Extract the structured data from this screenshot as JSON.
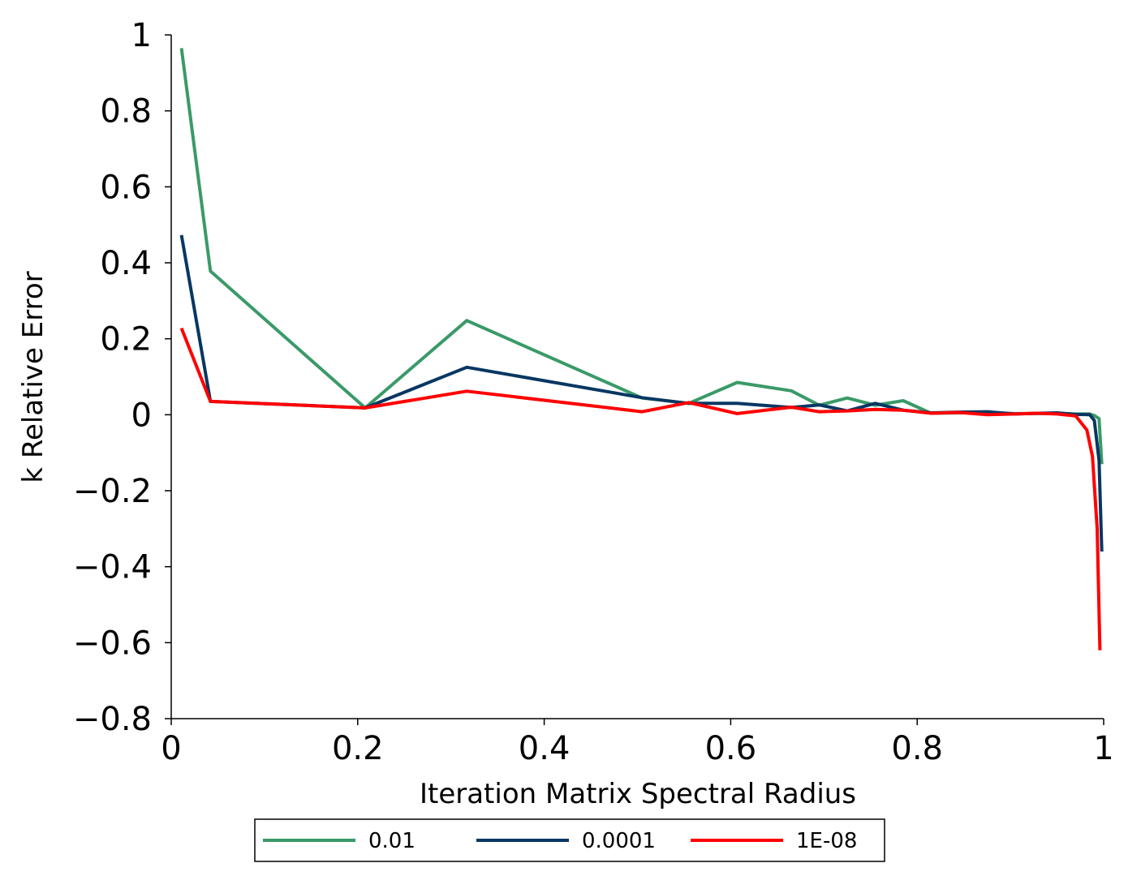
{
  "chart_data": {
    "type": "line",
    "xlabel": "Iteration Matrix Spectral Radius",
    "ylabel": "k Relative Error",
    "xlim": [
      0,
      1
    ],
    "ylim": [
      -0.8,
      1
    ],
    "xticks": [
      0,
      0.2,
      0.4,
      0.6,
      0.8,
      1
    ],
    "xtick_labels": [
      "0",
      "0.2",
      "0.4",
      "0.6",
      "0.8",
      "1"
    ],
    "yticks": [
      1,
      0.8,
      0.6,
      0.4,
      0.2,
      0,
      -0.2,
      -0.4,
      -0.6,
      -0.8
    ],
    "ytick_labels": [
      "1",
      "0.8",
      "0.6",
      "0.4",
      "0.2",
      "0",
      "−0.2",
      "−0.4",
      "−0.6",
      "−0.8"
    ],
    "grid": false,
    "legend_position": "bottom",
    "series": [
      {
        "name": "0.01",
        "color": "#3a9a68",
        "x": [
          0.011,
          0.042,
          0.208,
          0.317,
          0.505,
          0.555,
          0.607,
          0.665,
          0.695,
          0.725,
          0.755,
          0.785,
          0.815,
          0.845,
          0.875,
          0.905,
          0.93,
          0.95,
          0.97,
          0.985,
          0.99,
          0.995,
          0.998
        ],
        "y": [
          0.965,
          0.378,
          0.018,
          0.248,
          0.044,
          0.03,
          0.085,
          0.063,
          0.025,
          0.044,
          0.025,
          0.037,
          0.004,
          0.005,
          0.005,
          0.003,
          0.003,
          0.003,
          0.002,
          0.002,
          -0.002,
          -0.01,
          -0.13
        ]
      },
      {
        "name": "0.0001",
        "color": "#073763",
        "x": [
          0.011,
          0.042,
          0.208,
          0.317,
          0.505,
          0.555,
          0.607,
          0.665,
          0.695,
          0.725,
          0.755,
          0.785,
          0.815,
          0.845,
          0.875,
          0.905,
          0.93,
          0.95,
          0.97,
          0.985,
          0.99,
          0.995,
          0.998
        ],
        "y": [
          0.473,
          0.035,
          0.018,
          0.125,
          0.045,
          0.03,
          0.03,
          0.019,
          0.026,
          0.01,
          0.03,
          0.012,
          0.005,
          0.007,
          0.008,
          0.002,
          0.004,
          0.005,
          0.001,
          0.0,
          -0.015,
          -0.12,
          -0.36
        ]
      },
      {
        "name": "1E-08",
        "color": "#ff0000",
        "x": [
          0.011,
          0.042,
          0.208,
          0.317,
          0.505,
          0.555,
          0.607,
          0.665,
          0.695,
          0.725,
          0.755,
          0.785,
          0.815,
          0.845,
          0.875,
          0.905,
          0.93,
          0.95,
          0.97,
          0.982,
          0.988,
          0.993,
          0.996
        ],
        "y": [
          0.228,
          0.035,
          0.018,
          0.062,
          0.008,
          0.032,
          0.003,
          0.02,
          0.008,
          0.01,
          0.014,
          0.012,
          0.004,
          0.006,
          0.0,
          0.002,
          0.004,
          0.002,
          -0.003,
          -0.04,
          -0.11,
          -0.3,
          -0.62
        ]
      }
    ]
  }
}
